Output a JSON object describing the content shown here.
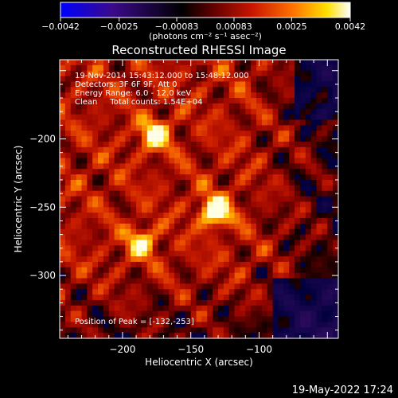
{
  "chart_data": {
    "type": "heatmap",
    "title": "Reconstructed RHESSI Image",
    "xlabel": "Heliocentric X (arcsec)",
    "ylabel": "Heliocentric Y (arcsec)",
    "xlim": [
      -246,
      -42
    ],
    "ylim": [
      -346,
      -142
    ],
    "x_ticks": [
      -200,
      -150,
      -100
    ],
    "x_tick_labels": [
      "−200",
      "−150",
      "−100"
    ],
    "y_ticks": [
      -200,
      -250,
      -300
    ],
    "y_tick_labels": [
      "−200",
      "−250",
      "−300"
    ],
    "colorbar": {
      "range": [
        -0.0042,
        0.0042
      ],
      "ticks": [
        -0.0042,
        -0.0025,
        -0.00083,
        0.00083,
        0.0025,
        0.0042
      ],
      "tick_labels": [
        "−0.0042",
        "−0.0025",
        "−0.00083",
        "0.00083",
        "0.0025",
        "0.0042"
      ],
      "unit_label": "(photons cm⁻² s⁻¹ asec⁻²)",
      "colors": [
        "#0000ff",
        "#3a0a8a",
        "#000000",
        "#5a0000",
        "#c81400",
        "#ff7000",
        "#ffe000",
        "#ffffff"
      ]
    },
    "sources": [
      {
        "x": -132,
        "y": -253,
        "peak": 0.0042
      },
      {
        "x": -176,
        "y": -197,
        "peak": 0.0034
      },
      {
        "x": -186,
        "y": -276,
        "peak": 0.0028
      }
    ],
    "info": {
      "time_range": "19-Nov-2014 15:43:12.000 to 15:48:12.000",
      "detectors": "Detectors: 3F 6F 9F, Att 0",
      "energy_range": "Energy Range: 6.0 - 12.0 keV",
      "method_counts": "Clean     Total counts: 1.54E+04",
      "peak_position": "Position of Peak = [-132,-253]"
    }
  },
  "footer": {
    "timestamp": "19-May-2022 17:24"
  }
}
